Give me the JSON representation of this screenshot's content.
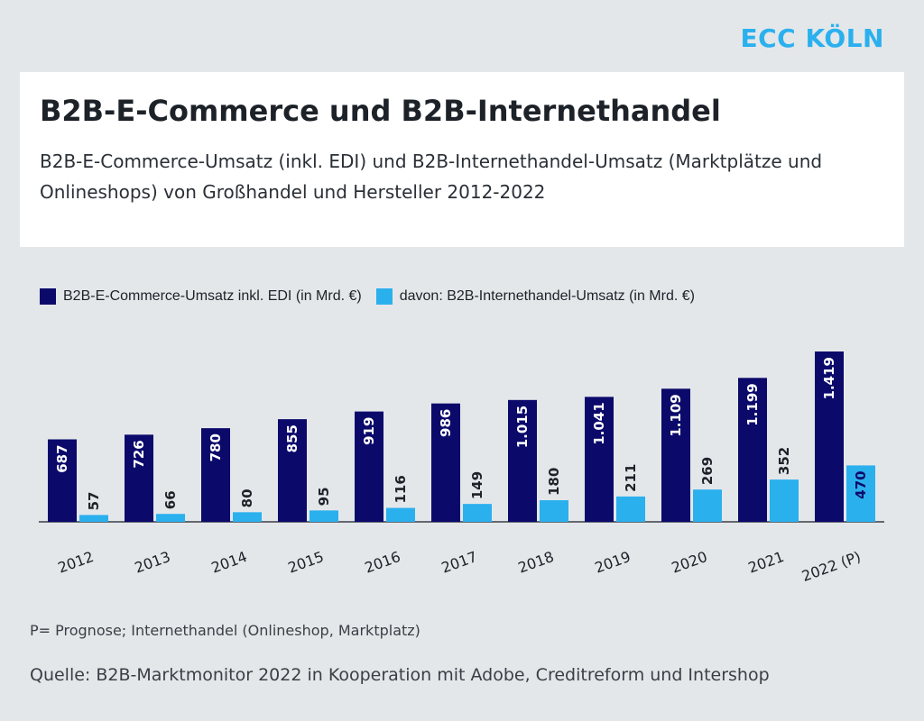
{
  "logo": "ECC KÖLN",
  "colors": {
    "series1": "#0b0a6b",
    "series2": "#2bb0ee",
    "axis": "#3a3f46"
  },
  "chart_data": {
    "type": "bar",
    "title": "B2B-E-Commerce und B2B-Internethandel",
    "subtitle": "B2B-E-Commerce-Umsatz (inkl. EDI) und B2B-Internethandel-Umsatz (Marktplätze und Onlineshops) von Großhandel und Hersteller 2012-2022",
    "categories": [
      "2012",
      "2013",
      "2014",
      "2015",
      "2016",
      "2017",
      "2018",
      "2019",
      "2020",
      "2021",
      "2022 (P)"
    ],
    "series": [
      {
        "name": "B2B-E-Commerce-Umsatz inkl. EDI (in Mrd. €)",
        "values": [
          687,
          726,
          780,
          855,
          919,
          986,
          1015,
          1041,
          1109,
          1199,
          1419
        ],
        "labels": [
          "687",
          "726",
          "780",
          "855",
          "919",
          "986",
          "1.015",
          "1.041",
          "1.109",
          "1.199",
          "1.419"
        ]
      },
      {
        "name": "davon: B2B-Internethandel-Umsatz (in Mrd. €)",
        "values": [
          57,
          66,
          80,
          95,
          116,
          149,
          180,
          211,
          269,
          352,
          470
        ],
        "labels": [
          "57",
          "66",
          "80",
          "95",
          "116",
          "149",
          "180",
          "211",
          "269",
          "352",
          "470"
        ]
      }
    ],
    "legend": "top-left",
    "grid": false
  },
  "footnote": "P= Prognose; Internethandel (Onlineshop, Marktplatz)",
  "source": "Quelle: B2B-Marktmonitor 2022 in Kooperation mit Adobe, Creditreform und Intershop"
}
